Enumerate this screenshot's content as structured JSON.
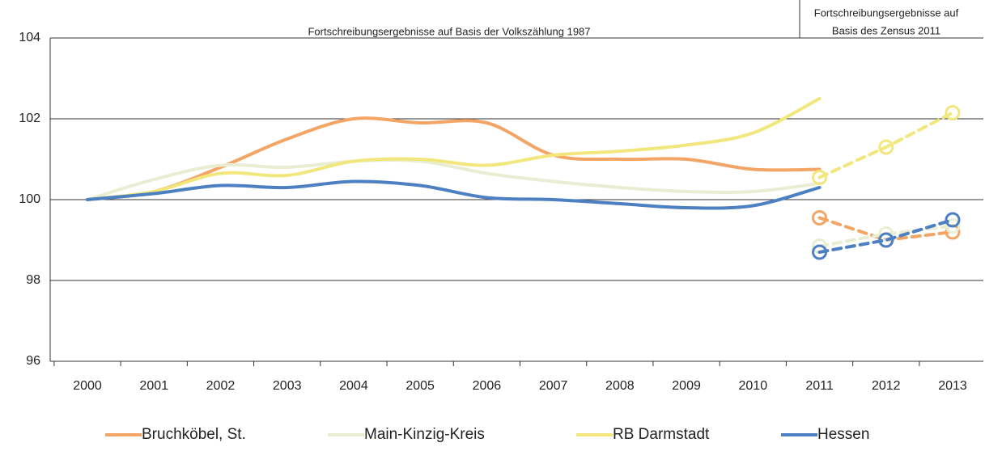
{
  "chart_data": {
    "type": "line",
    "categories": [
      "2000",
      "2001",
      "2002",
      "2003",
      "2004",
      "2005",
      "2006",
      "2007",
      "2008",
      "2009",
      "2010",
      "2011",
      "2012",
      "2013"
    ],
    "annotations": [
      {
        "lines": [
          "Fortschreibungsergebnisse auf Basis der Volkszählung 1987"
        ]
      },
      {
        "lines": [
          "Fortschreibungsergebnisse auf",
          "Basis des Zensus 2011"
        ]
      }
    ],
    "series": [
      {
        "name": "Bruchköbel, St.",
        "color": "#f2a565",
        "values": [
          100,
          100.2,
          100.8,
          101.5,
          102.0,
          101.9,
          101.9,
          101.1,
          101.0,
          101.0,
          100.75,
          100.75,
          null,
          null
        ],
        "census_values": [
          null,
          null,
          null,
          null,
          null,
          null,
          null,
          null,
          null,
          null,
          null,
          99.55,
          99.0,
          99.2
        ]
      },
      {
        "name": "Main-Kinzig-Kreis",
        "color": "#e9eed2",
        "values": [
          100,
          100.5,
          100.85,
          100.8,
          100.95,
          100.95,
          100.65,
          100.45,
          100.3,
          100.2,
          100.2,
          100.4,
          null,
          null
        ],
        "census_values": [
          null,
          null,
          null,
          null,
          null,
          null,
          null,
          null,
          null,
          null,
          null,
          98.85,
          99.15,
          99.35
        ]
      },
      {
        "name": "RB Darmstadt",
        "color": "#f1e77c",
        "values": [
          100,
          100.2,
          100.65,
          100.6,
          100.95,
          101.0,
          100.85,
          101.1,
          101.2,
          101.35,
          101.65,
          102.5,
          null,
          null
        ],
        "census_values": [
          null,
          null,
          null,
          null,
          null,
          null,
          null,
          null,
          null,
          null,
          null,
          100.55,
          101.3,
          102.15
        ]
      },
      {
        "name": "Hessen",
        "color": "#4c80c2",
        "values": [
          100,
          100.15,
          100.35,
          100.3,
          100.45,
          100.35,
          100.05,
          100.0,
          99.9,
          99.8,
          99.85,
          100.3,
          null,
          null
        ],
        "census_values": [
          null,
          null,
          null,
          null,
          null,
          null,
          null,
          null,
          null,
          null,
          null,
          98.7,
          99.0,
          99.5
        ]
      }
    ],
    "ylim": [
      96,
      104
    ],
    "yticks": [
      96,
      98,
      100,
      102,
      104
    ],
    "grid": true
  }
}
